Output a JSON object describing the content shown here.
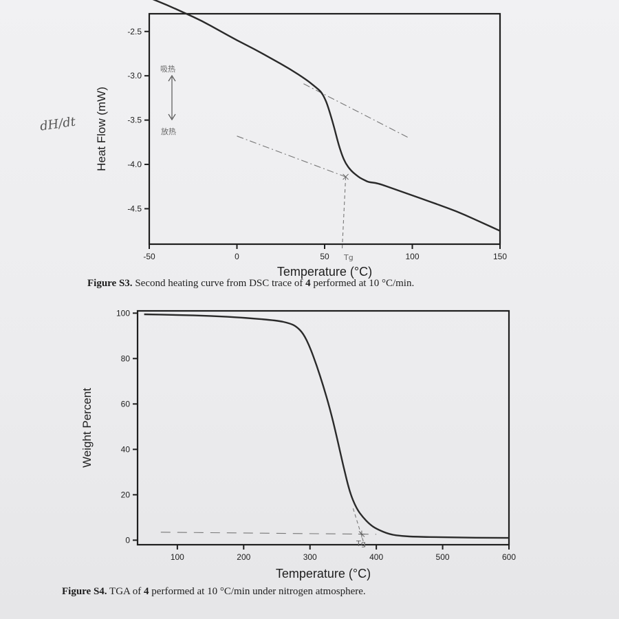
{
  "annotations": {
    "dh_dt": "dH/dt",
    "endo_note": "吸热",
    "exo_note": "放热",
    "tg_mark_1": "Tg",
    "tg_mark_2": "Tg"
  },
  "captions": {
    "s3_label": "Figure S3.",
    "s3_text_a": " Second heating curve from DSC trace of ",
    "s3_bold": "4",
    "s3_text_b": " performed at 10 °C/min.",
    "s4_label": "Figure S4.",
    "s4_text_a": " TGA of ",
    "s4_bold": "4",
    "s4_text_b": " performed at 10 °C/min under nitrogen atmosphere."
  },
  "chart_data": [
    {
      "id": "dsc",
      "type": "line",
      "title": "",
      "xlabel": "Temperature (°C)",
      "ylabel": "Heat Flow (mW)",
      "xlim": [
        -50,
        150
      ],
      "ylim": [
        -4.9,
        -2.3
      ],
      "xticks": [
        -50,
        0,
        50,
        100,
        150
      ],
      "yticks": [
        -2.5,
        -3.0,
        -3.5,
        -4.0,
        -4.5
      ],
      "ytick_labels": [
        "-2.5",
        "-3.0",
        "-3.5",
        "-4.0",
        "-4.5"
      ],
      "grid": false,
      "series": [
        {
          "x": [
            -50,
            -40,
            -30,
            -20,
            -10,
            0,
            10,
            20,
            30,
            40,
            45,
            48,
            50,
            52,
            55,
            58,
            60,
            62,
            65,
            68,
            70,
            73,
            75,
            80,
            90,
            100,
            110,
            120,
            130,
            140,
            150
          ],
          "y": [
            -2.12,
            -2.2,
            -2.29,
            -2.38,
            -2.49,
            -2.6,
            -2.7,
            -2.81,
            -2.92,
            -3.05,
            -3.13,
            -3.18,
            -3.25,
            -3.35,
            -3.55,
            -3.78,
            -3.9,
            -3.99,
            -4.07,
            -4.12,
            -4.15,
            -4.18,
            -4.2,
            -4.21,
            -4.28,
            -4.35,
            -4.42,
            -4.49,
            -4.57,
            -4.66,
            -4.75
          ]
        }
      ],
      "guides": [
        {
          "x": [
            38,
            98
          ],
          "y": [
            -3.09,
            -3.7
          ],
          "style": "dash-dot"
        },
        {
          "x": [
            0,
            62
          ],
          "y": [
            -3.68,
            -4.14
          ],
          "style": "dash-dot"
        },
        {
          "x": [
            62,
            60
          ],
          "y": [
            -4.14,
            -4.95
          ],
          "style": "dashed"
        }
      ]
    },
    {
      "id": "tga",
      "type": "line",
      "title": "",
      "xlabel": "Temperature (°C)",
      "ylabel": "Weight Percent",
      "xlim": [
        40,
        600
      ],
      "ylim": [
        -2,
        101
      ],
      "xticks": [
        100,
        200,
        300,
        400,
        500,
        600
      ],
      "yticks": [
        0,
        20,
        40,
        60,
        80,
        100
      ],
      "grid": false,
      "series": [
        {
          "x": [
            50,
            100,
            150,
            200,
            250,
            270,
            280,
            290,
            300,
            310,
            320,
            330,
            340,
            350,
            360,
            370,
            380,
            390,
            400,
            420,
            440,
            460,
            500,
            550,
            600
          ],
          "y": [
            99.5,
            99.2,
            98.8,
            98,
            96.8,
            95.5,
            94,
            91,
            85,
            77,
            68,
            58,
            46,
            33,
            21,
            14,
            10,
            7,
            5,
            2.5,
            1.8,
            1.5,
            1.3,
            1.1,
            1.0
          ]
        }
      ],
      "guides": [
        {
          "x": [
            75,
            400
          ],
          "y": [
            3.5,
            2.6
          ],
          "style": "long-dash"
        },
        {
          "x": [
            365,
            383
          ],
          "y": [
            14,
            -3
          ],
          "style": "dashed"
        }
      ]
    }
  ]
}
